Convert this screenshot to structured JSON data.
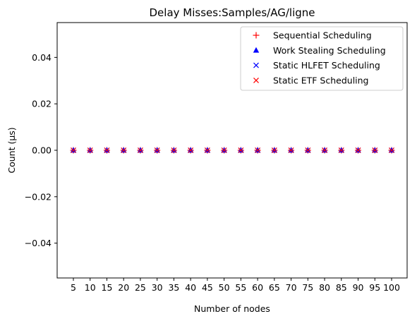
{
  "chart_data": {
    "type": "scatter",
    "title": "Delay Misses:Samples/AG/ligne",
    "xlabel": "Number of nodes",
    "ylabel": "Count (µs)",
    "categories": [
      "5",
      "10",
      "15",
      "20",
      "25",
      "30",
      "35",
      "40",
      "45",
      "50",
      "55",
      "60",
      "65",
      "70",
      "75",
      "80",
      "85",
      "90",
      "95",
      "100"
    ],
    "ylim": [
      -0.055,
      0.055
    ],
    "yticks": [
      0.04,
      0.02,
      0.0,
      -0.02,
      -0.04
    ],
    "ytick_labels": [
      "0.04",
      "0.02",
      "0.00",
      "−0.02",
      "−0.04"
    ],
    "grid": false,
    "legend_position": "top-right",
    "series": [
      {
        "name": "Sequential Scheduling",
        "marker": "plus",
        "color": "#ff0000",
        "values": [
          0,
          0,
          0,
          0,
          0,
          0,
          0,
          0,
          0,
          0,
          0,
          0,
          0,
          0,
          0,
          0,
          0,
          0,
          0,
          0
        ]
      },
      {
        "name": "Work Stealing Scheduling",
        "marker": "triangle",
        "color": "#0000ff",
        "values": [
          0,
          0,
          0,
          0,
          0,
          0,
          0,
          0,
          0,
          0,
          0,
          0,
          0,
          0,
          0,
          0,
          0,
          0,
          0,
          0
        ]
      },
      {
        "name": "Static HLFET Scheduling",
        "marker": "x",
        "color": "#0000ff",
        "values": [
          0,
          0,
          0,
          0,
          0,
          0,
          0,
          0,
          0,
          0,
          0,
          0,
          0,
          0,
          0,
          0,
          0,
          0,
          0,
          0
        ]
      },
      {
        "name": "Static ETF Scheduling",
        "marker": "x",
        "color": "#ff0000",
        "values": [
          0,
          0,
          0,
          0,
          0,
          0,
          0,
          0,
          0,
          0,
          0,
          0,
          0,
          0,
          0,
          0,
          0,
          0,
          0,
          0
        ]
      }
    ]
  }
}
